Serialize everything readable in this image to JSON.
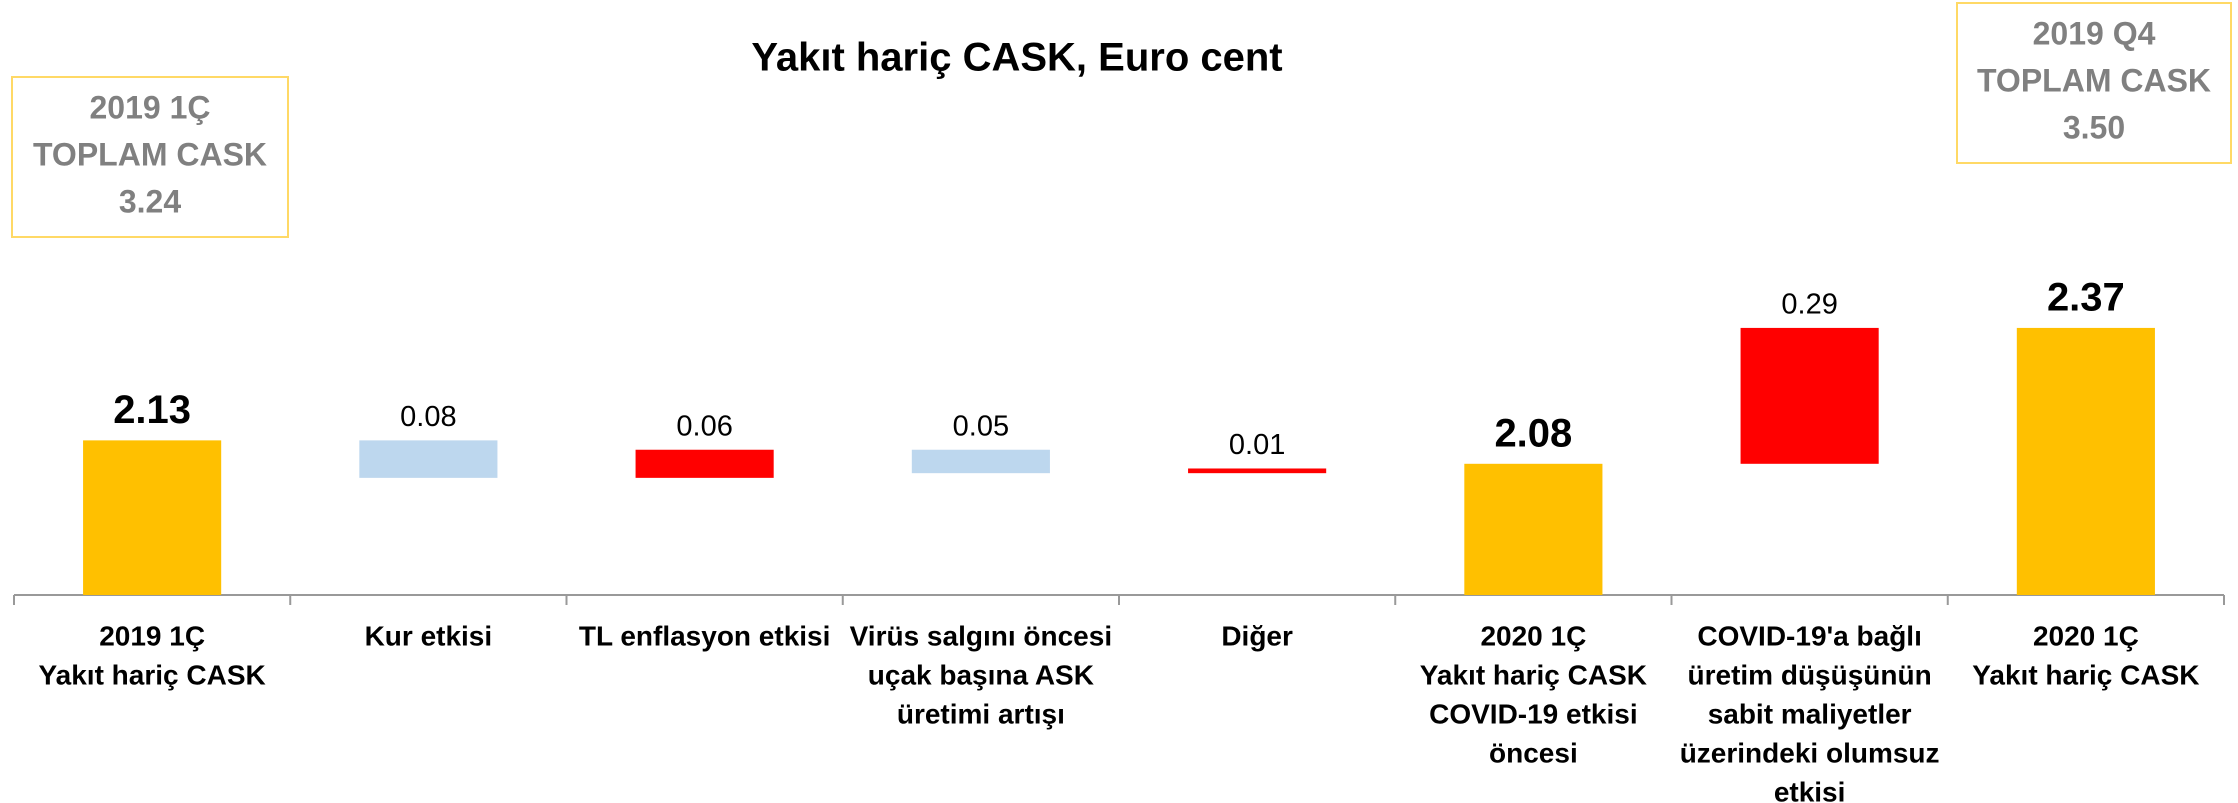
{
  "chart_data": {
    "type": "waterfall",
    "title": "Yakıt hariç CASK, Euro cent",
    "categories": [
      [
        "2019 1Ç",
        "Yakıt hariç CASK"
      ],
      [
        "Kur etkisi"
      ],
      [
        "TL enflasyon etkisi"
      ],
      [
        "Virüs salgını öncesi",
        "uçak başına ASK",
        "üretimi artışı"
      ],
      [
        "Diğer"
      ],
      [
        "2020 1Ç",
        "Yakıt hariç CASK",
        "COVID-19 etkisi",
        "öncesi"
      ],
      [
        "COVID-19'a bağlı",
        "üretim düşüşünün",
        "sabit maliyetler",
        "üzerindeki olumsuz",
        "etkisi"
      ],
      [
        "2020 1Ç",
        "Yakıt hariç CASK"
      ]
    ],
    "measure": [
      "total",
      "relative",
      "relative",
      "relative",
      "relative",
      "total",
      "relative",
      "total"
    ],
    "values": [
      2.13,
      -0.08,
      0.06,
      -0.05,
      0.01,
      2.08,
      0.29,
      2.37
    ],
    "value_labels": [
      "2.13",
      "0.08",
      "0.06",
      "0.05",
      "0.01",
      "2.08",
      "0.29",
      "2.37"
    ],
    "colors": [
      "#ffc000",
      "#bdd7ee",
      "#ff0000",
      "#bdd7ee",
      "#ff0000",
      "#ffc000",
      "#ff0000",
      "#ffc000"
    ],
    "ylim": [
      1.8,
      2.5
    ],
    "annotations": [
      {
        "lines": [
          "2019 1Ç",
          "TOPLAM CASK",
          "3.24"
        ]
      },
      {
        "lines": [
          "2019 Q4",
          "TOPLAM CASK",
          "3.50"
        ]
      }
    ]
  }
}
